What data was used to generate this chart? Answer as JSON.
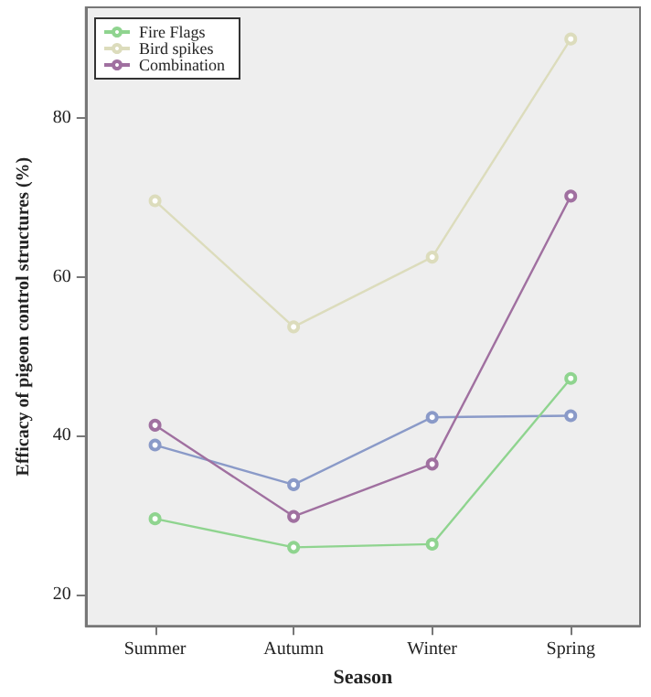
{
  "chart_data": {
    "type": "line",
    "xlabel": "Season",
    "ylabel": "Efficacy of pigeon control structures (%)",
    "categories": [
      "Summer",
      "Autumn",
      "Winter",
      "Spring"
    ],
    "series": [
      {
        "color": "#8a9ac8",
        "values": [
          38.8,
          33.8,
          42.3,
          42.5
        ]
      },
      {
        "name": "Fire Flags",
        "color": "#8fd48f",
        "values": [
          29.5,
          25.9,
          26.3,
          47.2
        ]
      },
      {
        "name": "Bird spikes",
        "color": "#dcdcbc",
        "values": [
          69.6,
          53.7,
          62.5,
          90
        ]
      },
      {
        "name": "Combination",
        "color": "#a070a0",
        "values": [
          41.3,
          29.8,
          36.4,
          70.2
        ]
      }
    ],
    "ylim": [
      16,
      94
    ],
    "yticks": [
      20,
      40,
      60,
      80
    ],
    "grid": false,
    "legend": "top left",
    "marker": "circle",
    "line_style": "solid"
  }
}
